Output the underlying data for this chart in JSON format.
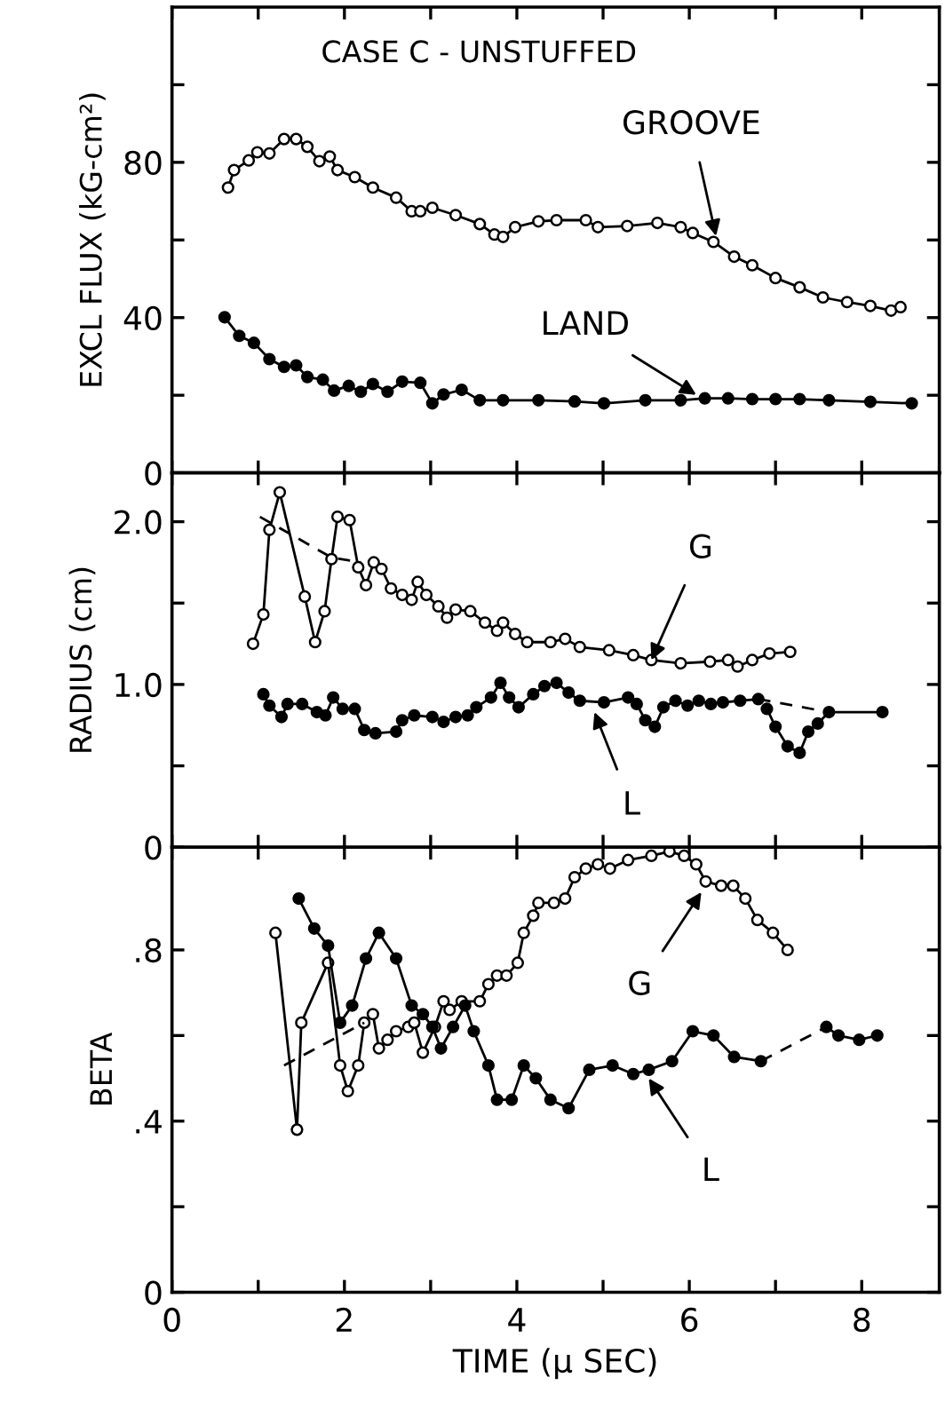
{
  "chart_data": [
    {
      "type": "line",
      "title": "CASE C - UNSTUFFED",
      "ylabel": "EXCL FLUX (kG-cm²)",
      "xlim": [
        0,
        8.9
      ],
      "ylim": [
        0,
        120
      ],
      "xticks": [
        {
          "value": 0,
          "label": null
        },
        {
          "value": 1,
          "label": null
        },
        {
          "value": 2,
          "label": null
        },
        {
          "value": 3,
          "label": null
        },
        {
          "value": 4,
          "label": null
        },
        {
          "value": 5,
          "label": null
        },
        {
          "value": 6,
          "label": null
        },
        {
          "value": 7,
          "label": null
        },
        {
          "value": 8,
          "label": null
        }
      ],
      "yticks": [
        0,
        {
          "value": 20,
          "label": null
        },
        40,
        {
          "value": 60,
          "label": null
        },
        80,
        {
          "value": 100,
          "label": null
        }
      ],
      "tick_labels": "y",
      "grid": false,
      "series": [
        {
          "color": "#000000",
          "marker": "circle",
          "line_style": "solid",
          "x": [
            0.65,
            0.72,
            0.89,
            0.99,
            1.13,
            1.3,
            1.44,
            1.57,
            1.71,
            1.83,
            1.92,
            2.12,
            2.33,
            2.6,
            2.78,
            2.88,
            3.02,
            3.29,
            3.57,
            3.74,
            3.84,
            3.98,
            4.25,
            4.46,
            4.8,
            4.94,
            5.28,
            5.63,
            5.9,
            6.04,
            6.28,
            6.52,
            6.73,
            7.0,
            7.28,
            7.55,
            7.83,
            8.1,
            8.34,
            8.45
          ],
          "values": [
            73.5,
            78,
            80.5,
            82.6,
            82.3,
            86,
            86,
            84,
            80.3,
            81.5,
            78,
            76.2,
            73.5,
            70.9,
            67.4,
            67.4,
            68.3,
            66.4,
            64.1,
            61.4,
            60.8,
            63.3,
            64.8,
            65.1,
            65.1,
            63.3,
            63.6,
            64.4,
            63.3,
            61.8,
            59.5,
            55.7,
            53.5,
            50.2,
            47.8,
            45.2,
            44,
            43,
            41.8,
            42.7
          ]
        },
        {
          "color": "#000000",
          "marker": "circle",
          "line_style": "solid",
          "x": [
            0.61,
            0.78,
            0.95,
            1.13,
            1.3,
            1.44,
            1.57,
            1.75,
            1.88,
            2.05,
            2.19,
            2.33,
            2.5,
            2.67,
            2.88,
            3.02,
            3.15,
            3.36,
            3.57,
            3.84,
            4.25,
            4.67,
            5.01,
            5.49,
            5.9,
            6.18,
            6.45,
            6.73,
            7.0,
            7.28,
            7.62,
            8.1,
            8.58
          ],
          "values": [
            40.1,
            35.3,
            33.5,
            29.3,
            27.3,
            27.7,
            24.7,
            24,
            21.2,
            22.4,
            20.9,
            22.9,
            20.9,
            23.5,
            23.2,
            17.9,
            20.2,
            21.4,
            18.7,
            18.7,
            18.7,
            18.4,
            17.9,
            18.7,
            18.7,
            19.2,
            19.2,
            19,
            19,
            19,
            18.7,
            18.3,
            17.9
          ]
        }
      ],
      "annotations": [
        {
          "text": "GROOVE",
          "x": 6.31,
          "y": 61
        },
        {
          "text": "LAND",
          "x": 6.08,
          "y": 20.1
        }
      ]
    },
    {
      "type": "line",
      "ylabel": "RADIUS (cm)",
      "xlim": [
        0,
        8.9
      ],
      "ylim": [
        0,
        2.3
      ],
      "xticks": [
        {
          "value": 0,
          "label": null
        },
        {
          "value": 1,
          "label": null
        },
        {
          "value": 2,
          "label": null
        },
        {
          "value": 3,
          "label": null
        },
        {
          "value": 4,
          "label": null
        },
        {
          "value": 5,
          "label": null
        },
        {
          "value": 6,
          "label": null
        },
        {
          "value": 7,
          "label": null
        },
        {
          "value": 8,
          "label": null
        }
      ],
      "yticks": [
        {
          "value": 0,
          "label": "0"
        },
        {
          "value": 0.5,
          "label": null
        },
        {
          "value": 1.0,
          "label": "1.0"
        },
        {
          "value": 1.5,
          "label": null
        },
        {
          "value": 2.0,
          "label": "2.0"
        }
      ],
      "tick_labels": "y",
      "grid": false,
      "series": [
        {
          "color": "#000000",
          "marker": "circle",
          "line_style": "solid",
          "x": [
            0.94,
            1.06,
            1.13,
            1.25,
            1.54,
            1.66,
            1.77,
            1.85,
            1.92,
            2.06,
            2.16,
            2.25,
            2.34,
            2.43,
            2.54,
            2.67,
            2.78,
            2.85,
            2.95,
            3.09,
            3.19,
            3.29,
            3.46,
            3.63,
            3.77,
            3.84,
            3.98,
            4.12,
            4.39,
            4.56,
            4.73,
            5.07,
            5.35,
            5.56,
            5.9,
            6.24,
            6.45,
            6.56,
            6.73,
            6.93,
            7.17
          ],
          "values": [
            1.25,
            1.43,
            1.95,
            2.18,
            1.54,
            1.26,
            1.45,
            1.77,
            2.03,
            2.01,
            1.72,
            1.61,
            1.75,
            1.71,
            1.59,
            1.55,
            1.52,
            1.63,
            1.55,
            1.48,
            1.41,
            1.46,
            1.45,
            1.38,
            1.33,
            1.38,
            1.31,
            1.26,
            1.26,
            1.28,
            1.23,
            1.21,
            1.18,
            1.15,
            1.13,
            1.14,
            1.15,
            1.11,
            1.15,
            1.19,
            1.2
          ]
        },
        {
          "color": "#000000",
          "marker": "circle",
          "line_style": "solid",
          "x": [
            1.06,
            1.13,
            1.27,
            1.34,
            1.51,
            1.68,
            1.78,
            1.87,
            1.98,
            2.12,
            2.23,
            2.36,
            2.6,
            2.67,
            2.81,
            3.02,
            3.15,
            3.29,
            3.43,
            3.53,
            3.7,
            3.81,
            3.91,
            4.02,
            4.19,
            4.32,
            4.46,
            4.6,
            4.73,
            5.01,
            5.29,
            5.39,
            5.49,
            5.6,
            5.7,
            5.84,
            5.98,
            6.11,
            6.25,
            6.39,
            6.59,
            6.8
          ],
          "values": [
            0.94,
            0.87,
            0.8,
            0.88,
            0.88,
            0.83,
            0.81,
            0.92,
            0.85,
            0.85,
            0.72,
            0.7,
            0.71,
            0.78,
            0.81,
            0.8,
            0.77,
            0.8,
            0.81,
            0.86,
            0.92,
            1.01,
            0.92,
            0.86,
            0.94,
            0.99,
            1.01,
            0.95,
            0.9,
            0.89,
            0.92,
            0.88,
            0.78,
            0.74,
            0.86,
            0.9,
            0.87,
            0.9,
            0.88,
            0.89,
            0.9,
            0.91
          ]
        },
        {
          "color": "#000000",
          "marker": "circle",
          "line_style": "solid",
          "x": [
            6.9,
            7.0,
            7.14,
            7.28,
            7.38,
            7.49,
            7.62,
            8.24
          ],
          "values": [
            0.85,
            0.74,
            0.62,
            0.58,
            0.71,
            0.76,
            0.83,
            0.83
          ]
        },
        {
          "color": "#000000",
          "marker": "none",
          "line_style": "dashed",
          "x": [
            1.02,
            1.85,
            2.19
          ],
          "values": [
            2.03,
            1.78,
            1.75
          ]
        },
        {
          "color": "#000000",
          "marker": "none",
          "line_style": "dashed",
          "x": [
            6.8,
            7.62
          ],
          "values": [
            0.91,
            0.83
          ]
        }
      ],
      "annotations": [
        {
          "text": "G",
          "x": 5.56,
          "y": 1.15
        },
        {
          "text": "L",
          "x": 4.9,
          "y": 0.83
        }
      ]
    },
    {
      "type": "line",
      "ylabel": "BETA",
      "xlabel": "TIME (μ SEC)",
      "xlim": [
        0,
        8.9
      ],
      "ylim": [
        0,
        1.04
      ],
      "xticks": [
        0,
        {
          "value": 1,
          "label": null
        },
        2,
        {
          "value": 3,
          "label": null
        },
        4,
        {
          "value": 5,
          "label": null
        },
        6,
        {
          "value": 7,
          "label": null
        },
        8
      ],
      "yticks": [
        {
          "value": 0,
          "label": "0"
        },
        {
          "value": 0.2,
          "label": null
        },
        {
          "value": 0.4,
          "label": ".4"
        },
        {
          "value": 0.6,
          "label": null
        },
        {
          "value": 0.8,
          "label": ".8"
        }
      ],
      "grid": false,
      "series": [
        {
          "color": "#000000",
          "marker": "circle",
          "line_style": "solid",
          "x": [
            1.2,
            1.45,
            1.5,
            1.81,
            1.95,
            2.04,
            2.16,
            2.23,
            2.33,
            2.4,
            2.5,
            2.6,
            2.74,
            2.81,
            2.91,
            3.05,
            3.15,
            3.22,
            3.36,
            3.57,
            3.67,
            3.77,
            3.88,
            4.01,
            4.08,
            4.19,
            4.25,
            4.43,
            4.56,
            4.67,
            4.8,
            4.94,
            5.08,
            5.29,
            5.56,
            5.77,
            5.94,
            6.08,
            6.19,
            6.37,
            6.51,
            6.65,
            6.79,
            6.97,
            7.14
          ],
          "values": [
            0.84,
            0.38,
            0.63,
            0.77,
            0.53,
            0.47,
            0.53,
            0.63,
            0.65,
            0.57,
            0.59,
            0.61,
            0.62,
            0.63,
            0.56,
            0.62,
            0.68,
            0.66,
            0.68,
            0.68,
            0.72,
            0.74,
            0.74,
            0.77,
            0.84,
            0.88,
            0.91,
            0.91,
            0.92,
            0.97,
            0.99,
            1.0,
            0.99,
            1.01,
            1.02,
            1.03,
            1.02,
            1.0,
            0.96,
            0.95,
            0.95,
            0.92,
            0.87,
            0.84,
            0.8
          ]
        },
        {
          "color": "#000000",
          "marker": "circle",
          "line_style": "solid",
          "x": [
            1.47,
            1.65,
            1.81,
            1.95,
            2.09,
            2.25,
            2.4,
            2.6,
            2.78,
            2.91,
            3.02,
            3.12,
            3.26,
            3.4,
            3.5,
            3.67,
            3.77,
            3.94,
            4.08,
            4.22,
            4.39,
            4.6,
            4.84,
            5.11,
            5.35,
            5.53,
            5.8,
            6.04,
            6.28,
            6.52,
            6.83
          ],
          "values": [
            0.92,
            0.85,
            0.81,
            0.63,
            0.67,
            0.78,
            0.84,
            0.78,
            0.67,
            0.65,
            0.62,
            0.57,
            0.62,
            0.67,
            0.61,
            0.53,
            0.45,
            0.45,
            0.53,
            0.5,
            0.45,
            0.43,
            0.52,
            0.53,
            0.51,
            0.52,
            0.54,
            0.61,
            0.6,
            0.55,
            0.54
          ]
        },
        {
          "color": "#000000",
          "marker": "circle",
          "line_style": "solid",
          "x": [
            7.59,
            7.73,
            7.97,
            8.18
          ],
          "values": [
            0.62,
            0.6,
            0.59,
            0.6
          ]
        },
        {
          "color": "#000000",
          "marker": "none",
          "line_style": "dashed",
          "x": [
            1.3,
            2.23
          ],
          "values": [
            0.53,
            0.63
          ]
        },
        {
          "color": "#000000",
          "marker": "none",
          "line_style": "dashed",
          "x": [
            6.83,
            7.59
          ],
          "values": [
            0.54,
            0.62
          ]
        }
      ],
      "annotations": [
        {
          "text": "G",
          "x": 6.14,
          "y": 0.935
        },
        {
          "text": "L",
          "x": 5.53,
          "y": 0.5
        }
      ]
    }
  ]
}
